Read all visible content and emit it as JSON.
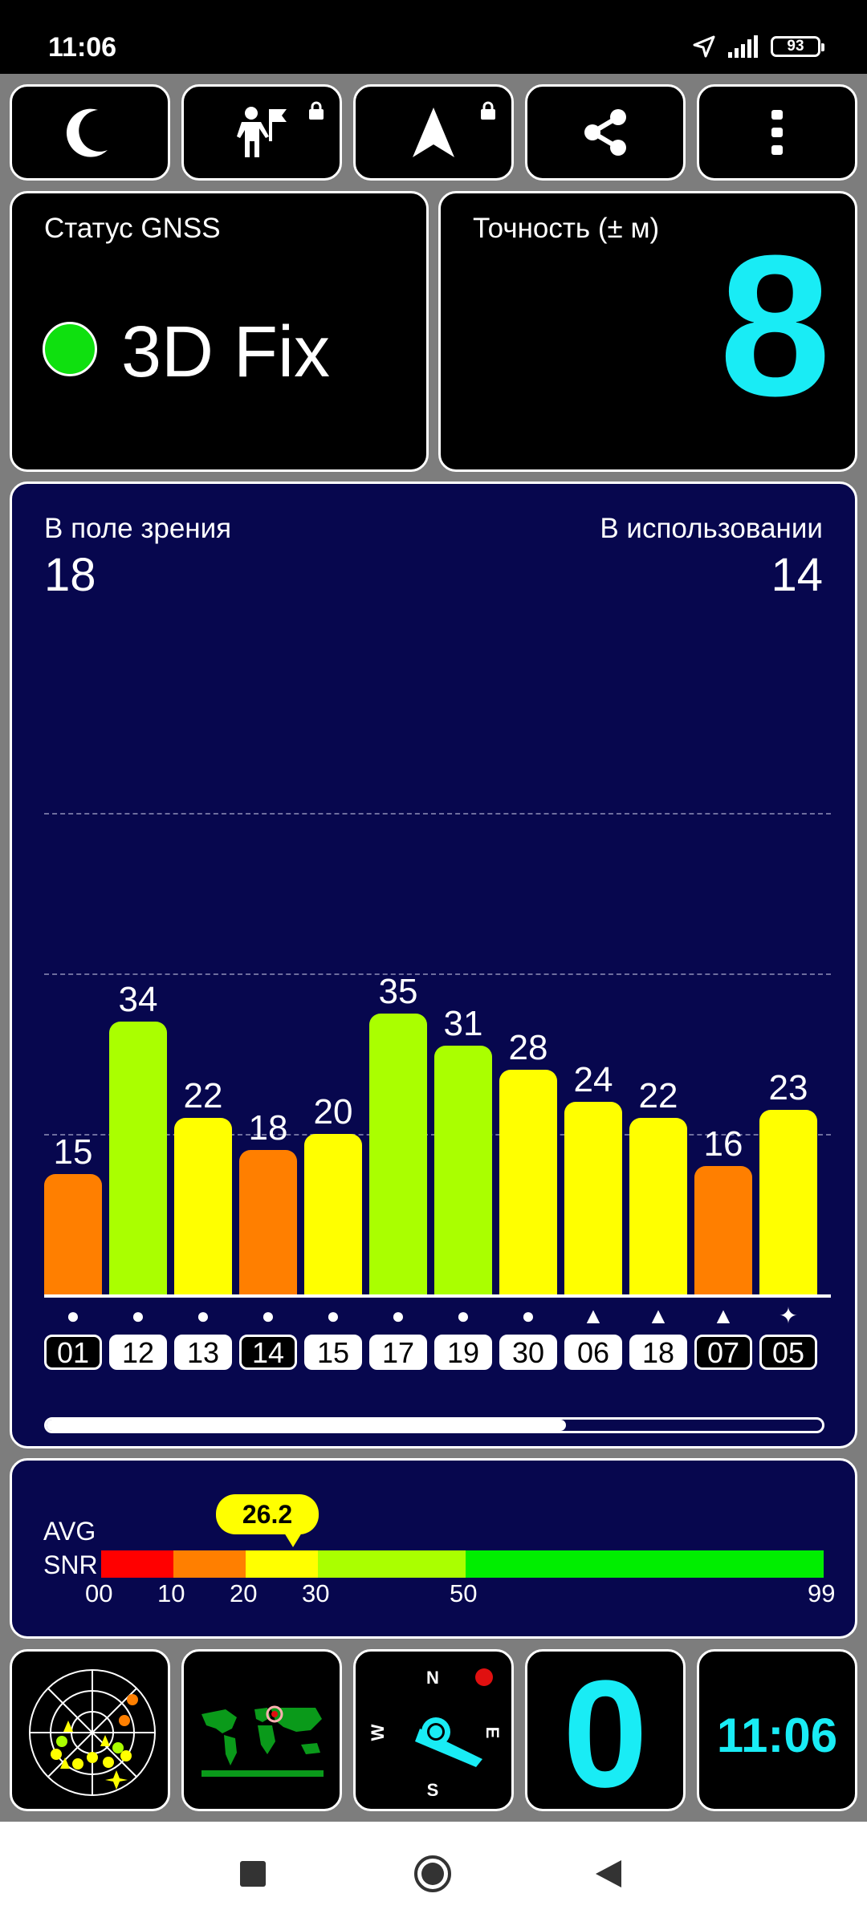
{
  "status_bar": {
    "time": "11:06",
    "battery": "93"
  },
  "toolbar": {
    "buttons": [
      {
        "icon": "moon-icon",
        "locked": false
      },
      {
        "icon": "person-flag-icon",
        "locked": true
      },
      {
        "icon": "navigation-arrow-icon",
        "locked": true
      },
      {
        "icon": "share-icon",
        "locked": false
      },
      {
        "icon": "more-vert-icon",
        "locked": false
      }
    ]
  },
  "gnss_status": {
    "label": "Статус GNSS",
    "value": "3D Fix",
    "dot_color": "#0fe00f"
  },
  "accuracy": {
    "label": "Точность (± м)",
    "value": "8",
    "color": "#19ecf5"
  },
  "sky": {
    "in_view_label": "В поле зрения",
    "in_view_value": "18",
    "in_use_label": "В использовании",
    "in_use_value": "14"
  },
  "chart_data": {
    "type": "bar",
    "categories": [
      "01",
      "12",
      "13",
      "14",
      "15",
      "17",
      "19",
      "30",
      "06",
      "18",
      "07",
      "05"
    ],
    "values": [
      15,
      34,
      22,
      18,
      20,
      35,
      31,
      28,
      24,
      22,
      16,
      23
    ],
    "colors": [
      "#ff7f00",
      "#aaff00",
      "#ffff00",
      "#ff7f00",
      "#ffff00",
      "#aaff00",
      "#aaff00",
      "#ffff00",
      "#ffff00",
      "#ffff00",
      "#ff7f00",
      "#ffff00"
    ],
    "symbols": [
      "●",
      "●",
      "●",
      "●",
      "●",
      "●",
      "●",
      "●",
      "▲",
      "▲",
      "▲",
      "✦"
    ],
    "used": [
      false,
      true,
      true,
      false,
      true,
      true,
      true,
      true,
      true,
      true,
      false,
      false
    ],
    "ylim": [
      0,
      60
    ],
    "gridlines": [
      20,
      40,
      60
    ],
    "scroll_fraction": 0.67
  },
  "snr": {
    "label_line1": "AVG",
    "label_line2": "SNR",
    "avg_value": "26.2",
    "ticks": [
      "00",
      "10",
      "20",
      "30",
      "50",
      "99"
    ],
    "segments": [
      {
        "from": 0,
        "to": 10,
        "color": "#ff0000"
      },
      {
        "from": 10,
        "to": 20,
        "color": "#ff7f00"
      },
      {
        "from": 20,
        "to": 30,
        "color": "#ffff00"
      },
      {
        "from": 30,
        "to": 50,
        "color": "#aaff00"
      },
      {
        "from": 50,
        "to": 99,
        "color": "#00ee00"
      }
    ]
  },
  "bottom_tiles": {
    "compass": {
      "n": "N",
      "s": "S",
      "e": "E",
      "w": "W"
    },
    "count_value": "0",
    "clock_value": "11:06"
  }
}
